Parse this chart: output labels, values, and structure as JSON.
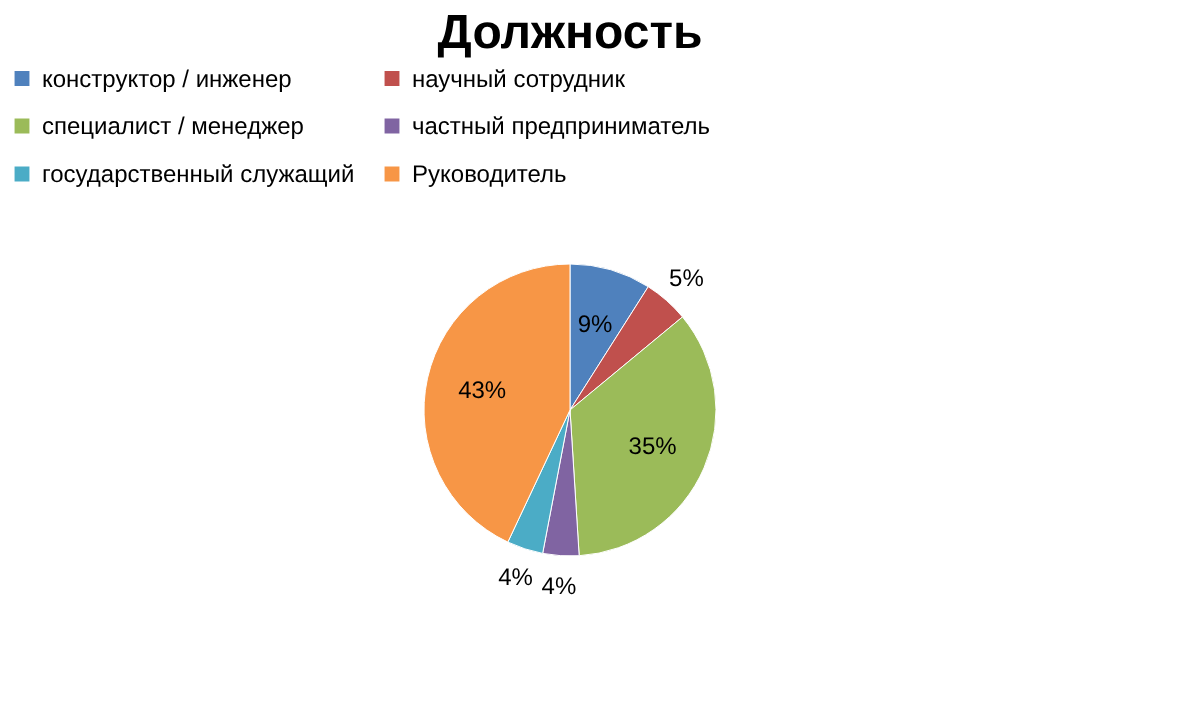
{
  "chart_data": {
    "type": "pie",
    "title": "Должность",
    "categories": [
      "конструктор / инженер",
      "научный сотрудник",
      "специалист / менеджер",
      "частный предприниматель",
      "государственный служащий",
      "Руководитель"
    ],
    "values": [
      9,
      5,
      35,
      4,
      4,
      43
    ],
    "value_labels": [
      "9%",
      "5%",
      "35%",
      "4%",
      "4%",
      "43%"
    ],
    "colors": [
      "#4f81bd",
      "#c0504d",
      "#9bbb59",
      "#8064a2",
      "#4bacc6",
      "#f79646"
    ],
    "legend": "top"
  }
}
